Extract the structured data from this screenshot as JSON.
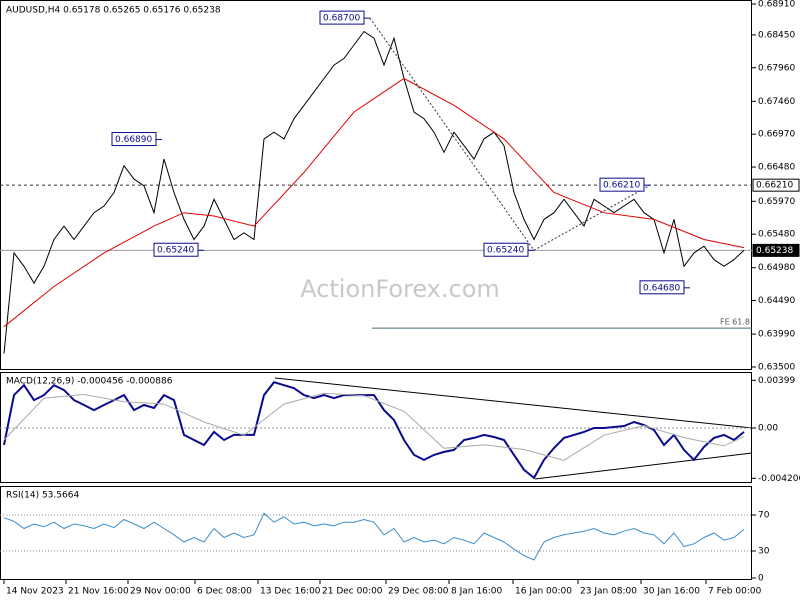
{
  "chart_data": [
    {
      "type": "line",
      "title": "AUDUSD,H4 0.65178 0.65265 0.65176 0.65238",
      "watermark": "ActionForex.com",
      "xlim": [
        -0.4,
        74.8
      ],
      "ylim": [
        0.63455,
        0.6897
      ],
      "yticks": [
        {
          "value": 0.6891,
          "label": "0.68910"
        },
        {
          "value": 0.6845,
          "label": "0.68450"
        },
        {
          "value": 0.6796,
          "label": "0.67960"
        },
        {
          "value": 0.6746,
          "label": "0.67460"
        },
        {
          "value": 0.6697,
          "label": "0.66970"
        },
        {
          "value": 0.6648,
          "label": "0.66480"
        },
        {
          "value": 0.6597,
          "label": "0.65970"
        },
        {
          "value": 0.6548,
          "label": "0.65480"
        },
        {
          "value": 0.6498,
          "label": "0.64980"
        },
        {
          "value": 0.6449,
          "label": "0.64490"
        },
        {
          "value": 0.6399,
          "label": "0.63990"
        },
        {
          "value": 0.635,
          "label": "0.63500"
        }
      ],
      "series": [
        {
          "color": "#000000",
          "x": [
            0,
            1,
            2,
            3,
            4,
            5,
            6,
            7,
            8,
            9,
            10,
            11,
            12,
            13,
            14,
            15,
            16,
            17,
            18,
            19,
            20,
            21,
            22,
            23,
            24,
            25,
            26,
            27,
            28,
            29,
            30,
            31,
            32,
            33,
            34,
            35,
            36,
            37,
            38,
            39,
            40,
            41,
            42,
            43,
            44,
            45,
            46,
            47,
            48,
            49,
            50,
            51,
            52,
            53,
            54,
            55,
            56,
            57,
            58,
            59,
            60,
            61,
            62,
            63,
            64,
            65,
            66,
            67,
            68,
            69,
            70,
            71,
            72,
            73,
            74
          ],
          "values": [
            0.637,
            0.652,
            0.65,
            0.6475,
            0.65,
            0.654,
            0.656,
            0.654,
            0.656,
            0.658,
            0.659,
            0.661,
            0.665,
            0.663,
            0.662,
            0.658,
            0.666,
            0.661,
            0.657,
            0.654,
            0.656,
            0.66,
            0.657,
            0.654,
            0.655,
            0.654,
            0.669,
            0.67,
            0.669,
            0.672,
            0.674,
            0.676,
            0.678,
            0.68,
            0.681,
            0.683,
            0.685,
            0.684,
            0.68,
            0.684,
            0.678,
            0.673,
            0.672,
            0.67,
            0.667,
            0.67,
            0.668,
            0.666,
            0.669,
            0.67,
            0.668,
            0.661,
            0.657,
            0.654,
            0.657,
            0.658,
            0.66,
            0.658,
            0.656,
            0.66,
            0.659,
            0.658,
            0.659,
            0.66,
            0.658,
            0.657,
            0.652,
            0.657,
            0.65,
            0.652,
            0.653,
            0.651,
            0.65,
            0.651,
            0.6524
          ]
        },
        {
          "color": "#e00000",
          "x": [
            0,
            5,
            10,
            15,
            18,
            21,
            25,
            30,
            35,
            40,
            45,
            50,
            55,
            60,
            65,
            70,
            74
          ],
          "values": [
            0.641,
            0.647,
            0.652,
            0.656,
            0.658,
            0.6575,
            0.656,
            0.664,
            0.673,
            0.678,
            0.674,
            0.669,
            0.661,
            0.658,
            0.657,
            0.654,
            0.6528
          ]
        }
      ],
      "annotations": [
        {
          "x": 36.6,
          "value": 0.687,
          "label": "0.68700"
        },
        {
          "x": 15.8,
          "value": 0.6689,
          "label": "0.66890"
        },
        {
          "x": 20,
          "value": 0.6524,
          "label": "0.65240"
        },
        {
          "x": 53,
          "value": 0.6524,
          "label": "0.65240"
        },
        {
          "x": 64.6,
          "value": 0.6621,
          "label": "0.66210"
        },
        {
          "x": 68.6,
          "value": 0.6468,
          "label": "0.64680"
        }
      ],
      "hlines": [
        {
          "value": 0.6621,
          "label": "0.66210",
          "style": "dashed"
        },
        {
          "value": 0.65238,
          "label": "0.65238",
          "style": "solid"
        }
      ],
      "level": {
        "x": 36.8,
        "value": 0.6408,
        "label": "FE 61.8"
      }
    },
    {
      "type": "line",
      "title": "MACD(12,26,9) -0.000456 -0.000886",
      "xlim": [
        -0.4,
        74.8
      ],
      "ylim": [
        -0.0046,
        0.0046
      ],
      "yticks": [
        0.00399,
        {
          "value": 0,
          "label": "0.00"
        },
        -0.004206
      ],
      "series": [
        {
          "color": "#0a0a8c",
          "x": [
            0,
            1,
            2,
            3,
            4,
            5,
            6,
            7,
            8,
            9,
            10,
            11,
            12,
            13,
            14,
            15,
            16,
            17,
            18,
            19,
            20,
            21,
            22,
            23,
            24,
            25,
            26,
            27,
            28,
            29,
            30,
            31,
            32,
            33,
            34,
            35,
            36,
            37,
            38,
            39,
            40,
            41,
            42,
            43,
            44,
            45,
            46,
            47,
            48,
            49,
            50,
            51,
            52,
            53,
            54,
            55,
            56,
            57,
            58,
            59,
            60,
            61,
            62,
            63,
            64,
            65,
            66,
            67,
            68,
            69,
            70,
            71,
            72,
            73,
            74
          ],
          "values": [
            -0.00142,
            0.00275,
            0.00358,
            0.00233,
            0.00275,
            0.00358,
            0.00317,
            0.00233,
            0.00192,
            0.0015,
            0.00192,
            0.00233,
            0.00275,
            0.0015,
            0.00192,
            0.00167,
            0.00275,
            0.00233,
            -0.00058,
            -0.001,
            -0.00142,
            -0.00033,
            -0.001,
            -0.00058,
            -0.00058,
            -0.00058,
            0.00275,
            0.00383,
            0.00358,
            0.00333,
            0.00275,
            0.0025,
            0.00275,
            0.0025,
            0.00275,
            0.00275,
            0.00275,
            0.00275,
            0.0015,
            0.00067,
            -0.001,
            -0.00225,
            -0.00267,
            -0.00225,
            -0.002,
            -0.00183,
            -0.001,
            -0.00083,
            -0.00058,
            -0.00075,
            -0.001,
            -0.00225,
            -0.0035,
            -0.00417,
            -0.00267,
            -0.00167,
            -0.00083,
            -0.00058,
            -0.00033,
            0,
            0,
            8e-05,
            0.00017,
            0.0005,
            0.00025,
            -0.00017,
            -0.00142,
            -0.00058,
            -0.00183,
            -0.00267,
            -0.00158,
            -0.00083,
            -0.00058,
            -0.001,
            -0.00033
          ]
        },
        {
          "color": "#aaaaaa",
          "x": [
            0,
            4,
            8,
            12,
            16,
            20,
            24,
            28,
            32,
            36,
            40,
            44,
            48,
            52,
            56,
            60,
            64,
            68,
            72,
            74
          ],
          "values": [
            -0.001,
            0.0025,
            0.0028,
            0.0022,
            0.002,
            0.0005,
            -0.0006,
            0.002,
            0.0029,
            0.0027,
            0.0014,
            -0.0017,
            -0.0014,
            -0.0018,
            -0.0027,
            -0.0006,
            0.0002,
            -0.0008,
            -0.0015,
            -0.0007
          ]
        }
      ]
    },
    {
      "type": "line",
      "title": "RSI(14) 53.5664",
      "xlim": [
        -0.4,
        74.8
      ],
      "ylim": [
        0,
        100
      ],
      "yticks": [
        70,
        30,
        0
      ],
      "grid": [
        70,
        30
      ],
      "xticks": [
        {
          "value": 0,
          "label": "14 Nov 2023"
        },
        {
          "value": 6.2,
          "label": "21 Nov 16:00"
        },
        {
          "value": 12.4,
          "label": "29 Nov 00:00"
        },
        {
          "value": 19.1,
          "label": "6 Dec 08:00"
        },
        {
          "value": 25.4,
          "label": "13 Dec 16:00"
        },
        {
          "value": 31.6,
          "label": "21 Dec 00:00"
        },
        {
          "value": 38.2,
          "label": "29 Dec 08:00"
        },
        {
          "value": 44.5,
          "label": "8 Jan 16:00"
        },
        {
          "value": 50.9,
          "label": "16 Jan 00:00"
        },
        {
          "value": 57.4,
          "label": "23 Jan 08:00"
        },
        {
          "value": 63.7,
          "label": "30 Jan 16:00"
        },
        {
          "value": 70.2,
          "label": "7 Feb 00:00"
        }
      ],
      "series": [
        {
          "color": "#3c8dc8",
          "x": [
            0,
            1,
            2,
            3,
            4,
            5,
            6,
            7,
            8,
            9,
            10,
            11,
            12,
            13,
            14,
            15,
            16,
            17,
            18,
            19,
            20,
            21,
            22,
            23,
            24,
            25,
            26,
            27,
            28,
            29,
            30,
            31,
            32,
            33,
            34,
            35,
            36,
            37,
            38,
            39,
            40,
            41,
            42,
            43,
            44,
            45,
            46,
            47,
            48,
            49,
            50,
            51,
            52,
            53,
            54,
            55,
            56,
            57,
            58,
            59,
            60,
            61,
            62,
            63,
            64,
            65,
            66,
            67,
            68,
            69,
            70,
            71,
            72,
            73,
            74
          ],
          "values": [
            67,
            63,
            55,
            60,
            57,
            62,
            55,
            60,
            58,
            55,
            60,
            56,
            65,
            60,
            55,
            62,
            55,
            48,
            40,
            45,
            40,
            55,
            45,
            50,
            45,
            48,
            72,
            62,
            68,
            60,
            62,
            58,
            60,
            58,
            62,
            62,
            65,
            62,
            48,
            55,
            40,
            45,
            40,
            42,
            38,
            45,
            42,
            38,
            50,
            45,
            40,
            32,
            25,
            20,
            40,
            45,
            48,
            50,
            52,
            55,
            50,
            48,
            52,
            55,
            50,
            48,
            38,
            50,
            35,
            38,
            45,
            50,
            42,
            45,
            54
          ]
        }
      ]
    }
  ]
}
